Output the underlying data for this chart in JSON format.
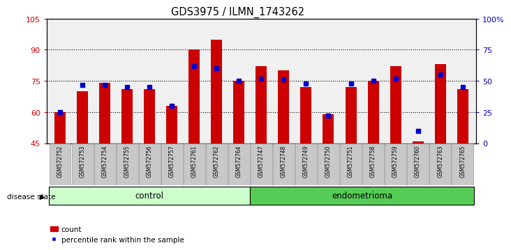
{
  "title": "GDS3975 / ILMN_1743262",
  "samples": [
    "GSM572752",
    "GSM572753",
    "GSM572754",
    "GSM572755",
    "GSM572756",
    "GSM572757",
    "GSM572761",
    "GSM572762",
    "GSM572764",
    "GSM572747",
    "GSM572748",
    "GSM572749",
    "GSM572750",
    "GSM572751",
    "GSM572758",
    "GSM572759",
    "GSM572760",
    "GSM572763",
    "GSM572765"
  ],
  "red_values": [
    60,
    70,
    74,
    71,
    71,
    63,
    90,
    95,
    75,
    82,
    80,
    72,
    59,
    72,
    75,
    82,
    46,
    83,
    71
  ],
  "blue_values": [
    25,
    47,
    47,
    45,
    45,
    30,
    62,
    60,
    50,
    52,
    51,
    48,
    22,
    48,
    50,
    52,
    10,
    55,
    45
  ],
  "ylim_left": [
    45,
    105
  ],
  "ylim_right": [
    0,
    100
  ],
  "yticks_left": [
    45,
    60,
    75,
    90,
    105
  ],
  "yticks_right": [
    0,
    25,
    50,
    75,
    100
  ],
  "ytick_labels_left": [
    "45",
    "60",
    "75",
    "90",
    "105"
  ],
  "ytick_labels_right": [
    "0",
    "25",
    "50",
    "75",
    "100%"
  ],
  "control_count": 9,
  "endometrioma_count": 10,
  "bar_color": "#cc0000",
  "blue_color": "#0000cc",
  "control_color": "#ccffcc",
  "endometrioma_color": "#55cc55",
  "bg_color": "#ffffff",
  "plot_bg": "#f0f0f0",
  "bar_width": 0.5,
  "blue_marker_size": 4
}
